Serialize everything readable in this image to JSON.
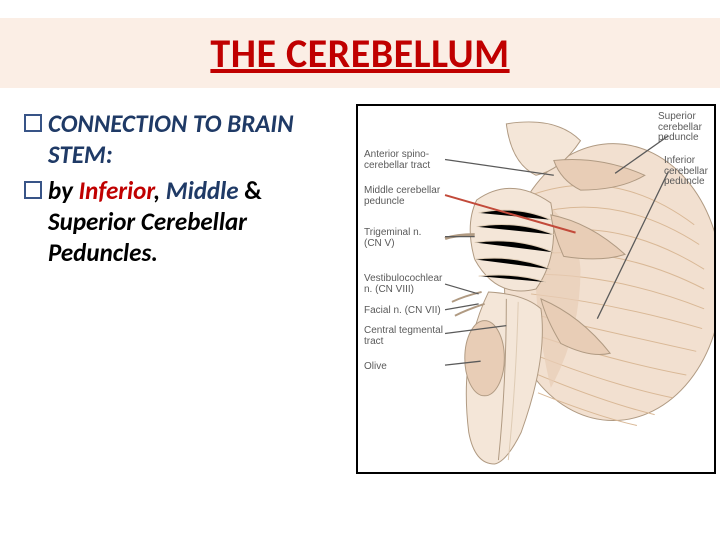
{
  "title": "THE CEREBELLUM",
  "bullets": [
    {
      "segments": [
        {
          "text": "CONNECTION TO BRAIN STEM:",
          "style": "bold-italic",
          "color": "darkblue"
        }
      ]
    },
    {
      "segments": [
        {
          "text": "by ",
          "style": "bold-italic",
          "color": "black"
        },
        {
          "text": "Inferior",
          "style": "bold-italic",
          "color": "red"
        },
        {
          "text": ", ",
          "style": "bold-italic",
          "color": "black"
        },
        {
          "text": "Middle",
          "style": "bold-italic",
          "color": "darkblue"
        },
        {
          "text": " & ",
          "style": "bold",
          "color": "black"
        },
        {
          "text": "Superior ",
          "style": "bold-italic",
          "color": "black"
        },
        {
          "text": "Cerebellar Peduncles.",
          "style": "bold-italic",
          "color": "black"
        }
      ]
    }
  ],
  "figure": {
    "labels": {
      "ant_spino": "Anterior spino-\ncerebellar tract",
      "mid_ped": "Middle cerebellar\npeduncle",
      "trigeminal": "Trigeminal n.\n(CN V)",
      "vestibulo": "Vestibulocochlear\nn. (CN VIII)",
      "facial": "Facial n. (CN VII)",
      "central_teg": "Central tegmental\ntract",
      "olive": "Olive",
      "sup_ped": "Superior\ncerebellar\npeduncle",
      "inf_ped": "Inferior\ncerebellar\npeduncle"
    },
    "colors": {
      "cerebellum_light": "#f2e0d0",
      "cerebellum_mid": "#e8cdb6",
      "cerebellum_deep": "#d9b896",
      "stem_light": "#f4e6d8",
      "stem_shadow": "#decbb4",
      "outline": "#b09a82",
      "red_leader": "#c24a3a",
      "gray_leader": "#5a5a5a",
      "label_text": "#5a5a5a"
    }
  }
}
